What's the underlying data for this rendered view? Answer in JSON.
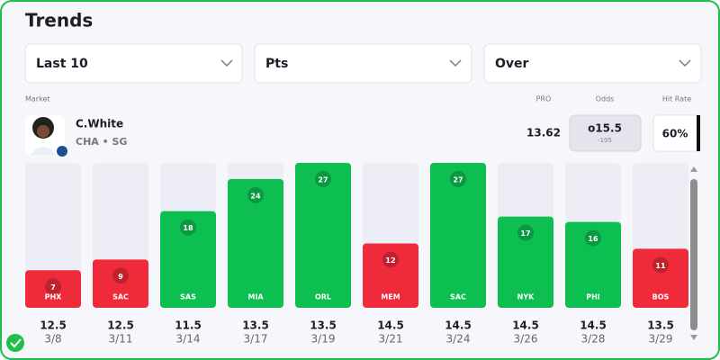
{
  "header": {
    "title": "Trends"
  },
  "filters": [
    "Last 10",
    "Pts",
    "Over"
  ],
  "columns": {
    "market": "Market",
    "pro": "PRO",
    "odds": "Odds",
    "hit_rate": "Hit Rate"
  },
  "player": {
    "name": "C.White",
    "team_position": "CHA • SG",
    "pro": 13.62,
    "odds": "o15.5",
    "odds_price": "-105",
    "hit_rate": "60%"
  },
  "chart_data": {
    "type": "bar",
    "categories": [
      "PHX",
      "SAC",
      "SAS",
      "MIA",
      "ORL",
      "MEM",
      "SAC",
      "NYK",
      "PHI",
      "BOS"
    ],
    "values": [
      7,
      9,
      18,
      24,
      27,
      12,
      27,
      17,
      16,
      11
    ],
    "lines": [
      12.5,
      12.5,
      11.5,
      13.5,
      13.5,
      14.5,
      14.5,
      14.5,
      14.5,
      13.5
    ],
    "dates": [
      "3/8",
      "3/11",
      "3/14",
      "3/17",
      "3/19",
      "3/21",
      "3/24",
      "3/26",
      "3/28",
      "3/29"
    ],
    "ylim": [
      0,
      27
    ],
    "over_color": "#0dbf50",
    "under_color": "#ef2b3b",
    "track_color": "#ecedf5"
  }
}
